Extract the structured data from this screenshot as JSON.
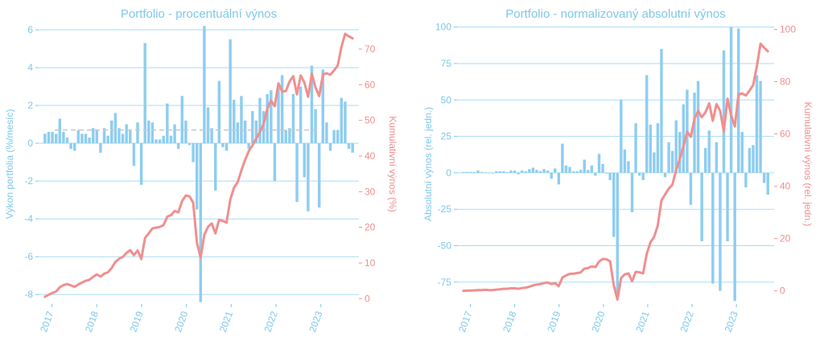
{
  "colors": {
    "bar": "#8ecdf0",
    "axis_left": "#7ec8ea",
    "line": "#f08f8f",
    "grid": "#a9ddf5",
    "mean": "#c9c9c9",
    "title": "#7ec8ea"
  },
  "chart_data": [
    {
      "type": "bar",
      "title": "Portfolio - procentuální výnos",
      "ylabel": "Výkon portfolia (%/mesíc)",
      "y2label": "Kumulativní výnos (%)",
      "ylim": [
        -8.5,
        6.3
      ],
      "y2lim": [
        -1.5,
        77
      ],
      "yticks": [
        -8,
        -6,
        -4,
        -2,
        0,
        2,
        4,
        6
      ],
      "y2ticks": [
        0,
        10,
        20,
        30,
        40,
        50,
        60,
        70
      ],
      "xlim": [
        2016.7,
        2023.85
      ],
      "xticks": [
        2017,
        2018,
        2019,
        2020,
        2021,
        2022,
        2023
      ],
      "xticklabels": [
        "2017",
        "2018",
        "2019",
        "2020",
        "2021",
        "2022",
        "2023"
      ],
      "mean_line": 0.7,
      "bar_values": [
        0.5,
        0.6,
        0.6,
        0.5,
        1.3,
        0.6,
        0.3,
        -0.3,
        -0.4,
        0.7,
        0.5,
        0.5,
        0.3,
        0.8,
        0.7,
        -0.5,
        0.8,
        0.4,
        1.2,
        1.6,
        0.8,
        0.5,
        1.0,
        0.7,
        -1.2,
        1.1,
        -2.2,
        5.3,
        1.2,
        1.1,
        0.2,
        0.2,
        0.4,
        2.1,
        0.4,
        1.0,
        -0.3,
        2.5,
        1.2,
        -0.1,
        -1.0,
        -3.5,
        -8.4,
        6.2,
        1.9,
        0.8,
        -2.5,
        3.3,
        -0.2,
        -0.4,
        5.5,
        2.3,
        1.1,
        2.5,
        1.2,
        -0.3,
        1.7,
        1.2,
        2.4,
        1.7,
        2.6,
        2.8,
        -2.0,
        2.9,
        3.6,
        0.7,
        0.8,
        2.6,
        -3.1,
        3.0,
        -1.8,
        -3.6,
        4.1,
        1.8,
        -3.4,
        3.9,
        1.1,
        -0.4,
        0.7,
        0.7,
        2.4,
        2.2,
        -0.3,
        -0.5
      ],
      "line_values": [
        0.5,
        1.1,
        1.6,
        2.0,
        3.2,
        3.8,
        4.1,
        3.7,
        3.3,
        4.0,
        4.5,
        5.0,
        5.3,
        6.1,
        6.8,
        6.2,
        7.0,
        7.4,
        8.6,
        10.3,
        11.2,
        11.7,
        12.8,
        13.6,
        12.2,
        13.5,
        11.1,
        17.0,
        18.3,
        19.7,
        19.9,
        20.1,
        20.6,
        23.0,
        23.4,
        24.6,
        24.2,
        27.4,
        28.9,
        28.7,
        26.9,
        15.7,
        11.5,
        17.9,
        20.1,
        21.1,
        18.3,
        22.1,
        21.8,
        21.3,
        27.7,
        31.1,
        32.7,
        36.0,
        38.9,
        41.4,
        43.0,
        44.9,
        46.7,
        49.0,
        53.2,
        55.6,
        54.0,
        60.4,
        58.1,
        58.2,
        60.9,
        62.4,
        57.3,
        62.6,
        60.6,
        56.6,
        63.1,
        59.2,
        56.8,
        62.9,
        63.2,
        62.8,
        64.0,
        65.4,
        70.6,
        74.3,
        73.6,
        73.0
      ]
    },
    {
      "type": "bar",
      "title": "Portfolio - normalizovaný absolutní výnos",
      "ylabel": "Absolutní výnos (rel. jedn.)",
      "y2label": "Kumulativní výnos (rel. jedn.)",
      "ylim": [
        -90,
        102
      ],
      "y2lim": [
        -5,
        102
      ],
      "yticks": [
        -75,
        -50,
        -25,
        0,
        25,
        50,
        75,
        100
      ],
      "y2ticks": [
        0,
        20,
        40,
        60,
        80,
        100
      ],
      "xlim": [
        2016.7,
        2023.85
      ],
      "xticks": [
        2017,
        2018,
        2019,
        2020,
        2021,
        2022,
        2023
      ],
      "xticklabels": [
        "2017",
        "2018",
        "2019",
        "2020",
        "2021",
        "2022",
        "2023"
      ],
      "bar_values": [
        0.5,
        0.6,
        0.6,
        0.5,
        1.5,
        0.6,
        0.3,
        -0.3,
        -0.4,
        1.0,
        1.0,
        1.0,
        0.5,
        1.5,
        1.5,
        -1.0,
        1.6,
        1.0,
        2.5,
        3.5,
        2.0,
        1.2,
        2.5,
        1.5,
        -4.0,
        3.0,
        -8.0,
        20.0,
        5.0,
        4.0,
        1.0,
        1.0,
        2.0,
        9.0,
        2.0,
        5.0,
        -2.0,
        13.0,
        6.0,
        -0.5,
        -5.0,
        -44.0,
        -85.0,
        50.0,
        16.0,
        8.0,
        -27.0,
        34.0,
        -2.0,
        -5.0,
        67.0,
        33.0,
        14.0,
        34.0,
        85.0,
        -3.0,
        21.0,
        15.0,
        36.0,
        28.0,
        47.0,
        57.0,
        -22.0,
        55.0,
        63.0,
        -47.0,
        17.0,
        29.0,
        -76.0,
        21.0,
        -81.0,
        84.0,
        -47.0,
        100.0,
        -88.0,
        99.0,
        28.0,
        -10.0,
        17.0,
        19.0,
        67.0,
        63.0,
        -7.0,
        -15.0
      ],
      "line_values": [
        0.0,
        0.1,
        0.1,
        0.2,
        0.3,
        0.3,
        0.4,
        0.3,
        0.3,
        0.5,
        0.6,
        0.8,
        0.8,
        1.0,
        1.0,
        0.8,
        1.1,
        1.2,
        1.6,
        2.1,
        2.4,
        2.6,
        3.0,
        3.2,
        2.6,
        3.0,
        1.8,
        5.1,
        5.9,
        6.5,
        6.6,
        6.8,
        7.1,
        8.5,
        8.7,
        9.4,
        9.1,
        11.2,
        12.2,
        12.1,
        11.3,
        2.2,
        -3.3,
        4.9,
        6.3,
        6.7,
        3.7,
        7.3,
        7.1,
        6.7,
        14.3,
        18.5,
        20.7,
        25.0,
        34.6,
        36.9,
        39.1,
        40.7,
        46.1,
        50.4,
        55.2,
        60.9,
        58.9,
        65.8,
        68.8,
        66.4,
        68.3,
        71.7,
        65.0,
        71.4,
        68.9,
        61.0,
        73.5,
        67.1,
        62.9,
        75.1,
        75.5,
        74.7,
        76.6,
        78.7,
        85.8,
        94.5,
        93.0,
        91.6
      ]
    }
  ]
}
